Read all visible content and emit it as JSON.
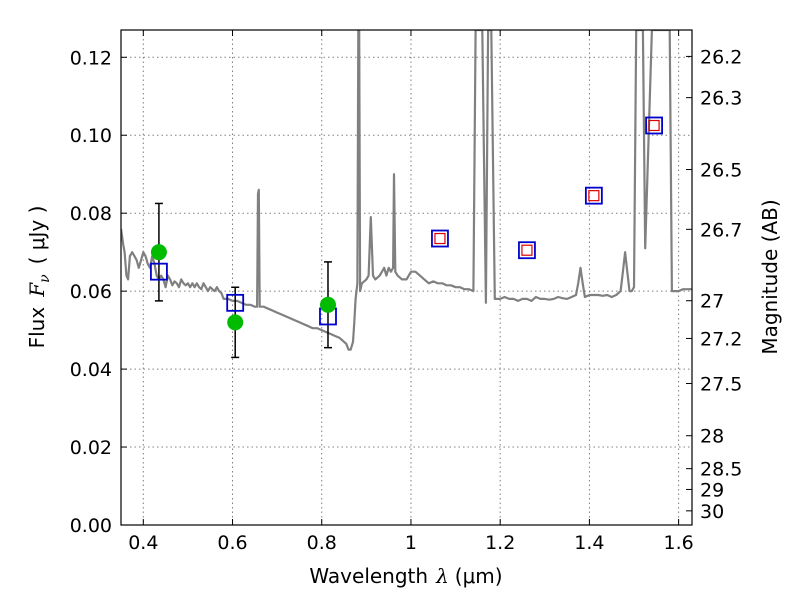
{
  "chart_data": {
    "type": "scatter",
    "xlabel_text": "Wavelength",
    "xlabel_symbol": "λ",
    "xlabel_unit": "(μm)",
    "ylabel_text": "Flux",
    "ylabel_symbol": "F",
    "ylabel_subscript": "ν",
    "ylabel_unit": "( μJy )",
    "y2label": "Magnitude (AB)",
    "xlim": [
      0.35,
      1.63
    ],
    "ylim": [
      0.0,
      0.127
    ],
    "grid": true,
    "x_ticks": [
      {
        "value": 0.4,
        "label": "0.4"
      },
      {
        "value": 0.6,
        "label": "0.6"
      },
      {
        "value": 0.8,
        "label": "0.8"
      },
      {
        "value": 1.0,
        "label": "1"
      },
      {
        "value": 1.2,
        "label": "1.2"
      },
      {
        "value": 1.4,
        "label": "1.4"
      },
      {
        "value": 1.6,
        "label": "1.6"
      }
    ],
    "y_ticks": [
      {
        "value": 0.0,
        "label": "0.00"
      },
      {
        "value": 0.02,
        "label": "0.02"
      },
      {
        "value": 0.04,
        "label": "0.04"
      },
      {
        "value": 0.06,
        "label": "0.06"
      },
      {
        "value": 0.08,
        "label": "0.08"
      },
      {
        "value": 0.1,
        "label": "0.10"
      },
      {
        "value": 0.12,
        "label": "0.12"
      }
    ],
    "y2_ticks": [
      {
        "value": 26.2,
        "label": "26.2"
      },
      {
        "value": 26.3,
        "label": "26.3"
      },
      {
        "value": 26.5,
        "label": "26.5"
      },
      {
        "value": 26.7,
        "label": "26.7"
      },
      {
        "value": 27.0,
        "label": "27"
      },
      {
        "value": 27.2,
        "label": "27.2"
      },
      {
        "value": 27.5,
        "label": "27.5"
      },
      {
        "value": 28.0,
        "label": "28"
      },
      {
        "value": 28.5,
        "label": "28.5"
      },
      {
        "value": 29.0,
        "label": "29"
      },
      {
        "value": 30.0,
        "label": "30"
      }
    ],
    "colors": {
      "spectrum": "#808080",
      "observed": "#00bb00",
      "model_box": "#0000cc",
      "model_inner": "#dd0000",
      "errorbar": "#000000",
      "grid": "#808080"
    },
    "spectrum": [
      [
        0.35,
        0.076
      ],
      [
        0.355,
        0.072
      ],
      [
        0.358,
        0.07
      ],
      [
        0.362,
        0.064
      ],
      [
        0.366,
        0.063
      ],
      [
        0.37,
        0.069
      ],
      [
        0.375,
        0.07
      ],
      [
        0.38,
        0.069
      ],
      [
        0.385,
        0.068
      ],
      [
        0.39,
        0.066
      ],
      [
        0.395,
        0.068
      ],
      [
        0.4,
        0.07
      ],
      [
        0.405,
        0.069
      ],
      [
        0.41,
        0.067
      ],
      [
        0.415,
        0.066
      ],
      [
        0.42,
        0.069
      ],
      [
        0.425,
        0.067
      ],
      [
        0.43,
        0.064
      ],
      [
        0.435,
        0.063
      ],
      [
        0.44,
        0.064
      ],
      [
        0.445,
        0.063
      ],
      [
        0.45,
        0.061
      ],
      [
        0.455,
        0.064
      ],
      [
        0.46,
        0.063
      ],
      [
        0.465,
        0.0615
      ],
      [
        0.47,
        0.0625
      ],
      [
        0.475,
        0.062
      ],
      [
        0.48,
        0.061
      ],
      [
        0.485,
        0.063
      ],
      [
        0.49,
        0.062
      ],
      [
        0.495,
        0.0615
      ],
      [
        0.5,
        0.062
      ],
      [
        0.505,
        0.061
      ],
      [
        0.51,
        0.062
      ],
      [
        0.515,
        0.061
      ],
      [
        0.52,
        0.062
      ],
      [
        0.525,
        0.061
      ],
      [
        0.53,
        0.0605
      ],
      [
        0.535,
        0.062
      ],
      [
        0.54,
        0.061
      ],
      [
        0.545,
        0.06
      ],
      [
        0.55,
        0.061
      ],
      [
        0.555,
        0.0605
      ],
      [
        0.56,
        0.06
      ],
      [
        0.565,
        0.061
      ],
      [
        0.57,
        0.06
      ],
      [
        0.575,
        0.0595
      ],
      [
        0.58,
        0.058
      ],
      [
        0.59,
        0.058
      ],
      [
        0.6,
        0.0575
      ],
      [
        0.61,
        0.0575
      ],
      [
        0.62,
        0.057
      ],
      [
        0.63,
        0.0565
      ],
      [
        0.64,
        0.0565
      ],
      [
        0.65,
        0.056
      ],
      [
        0.655,
        0.056
      ],
      [
        0.657,
        0.085
      ],
      [
        0.659,
        0.086
      ],
      [
        0.661,
        0.056
      ],
      [
        0.67,
        0.056
      ],
      [
        0.68,
        0.0555
      ],
      [
        0.69,
        0.055
      ],
      [
        0.7,
        0.0545
      ],
      [
        0.71,
        0.054
      ],
      [
        0.72,
        0.0535
      ],
      [
        0.73,
        0.053
      ],
      [
        0.74,
        0.0525
      ],
      [
        0.75,
        0.052
      ],
      [
        0.76,
        0.0515
      ],
      [
        0.77,
        0.051
      ],
      [
        0.78,
        0.0505
      ],
      [
        0.79,
        0.0505
      ],
      [
        0.8,
        0.05
      ],
      [
        0.81,
        0.0495
      ],
      [
        0.82,
        0.049
      ],
      [
        0.83,
        0.0485
      ],
      [
        0.84,
        0.048
      ],
      [
        0.85,
        0.047
      ],
      [
        0.855,
        0.0465
      ],
      [
        0.86,
        0.045
      ],
      [
        0.865,
        0.045
      ],
      [
        0.87,
        0.047
      ],
      [
        0.873,
        0.052
      ],
      [
        0.876,
        0.058
      ],
      [
        0.88,
        0.062
      ],
      [
        0.882,
        0.127
      ],
      [
        0.884,
        0.127
      ],
      [
        0.886,
        0.06
      ],
      [
        0.89,
        0.062
      ],
      [
        0.9,
        0.063
      ],
      [
        0.905,
        0.064
      ],
      [
        0.91,
        0.079
      ],
      [
        0.915,
        0.064
      ],
      [
        0.92,
        0.063
      ],
      [
        0.93,
        0.064
      ],
      [
        0.94,
        0.066
      ],
      [
        0.945,
        0.064
      ],
      [
        0.95,
        0.066
      ],
      [
        0.955,
        0.065
      ],
      [
        0.96,
        0.066
      ],
      [
        0.962,
        0.09
      ],
      [
        0.965,
        0.065
      ],
      [
        0.97,
        0.064
      ],
      [
        0.98,
        0.063
      ],
      [
        0.99,
        0.063
      ],
      [
        1.0,
        0.065
      ],
      [
        1.01,
        0.065
      ],
      [
        1.02,
        0.064
      ],
      [
        1.03,
        0.063
      ],
      [
        1.04,
        0.062
      ],
      [
        1.05,
        0.0625
      ],
      [
        1.06,
        0.062
      ],
      [
        1.07,
        0.062
      ],
      [
        1.08,
        0.0615
      ],
      [
        1.09,
        0.0615
      ],
      [
        1.1,
        0.061
      ],
      [
        1.11,
        0.061
      ],
      [
        1.12,
        0.0605
      ],
      [
        1.13,
        0.0605
      ],
      [
        1.14,
        0.06
      ],
      [
        1.145,
        0.127
      ],
      [
        1.16,
        0.127
      ],
      [
        1.168,
        0.057
      ],
      [
        1.173,
        0.127
      ],
      [
        1.18,
        0.127
      ],
      [
        1.188,
        0.058
      ],
      [
        1.2,
        0.058
      ],
      [
        1.21,
        0.0585
      ],
      [
        1.22,
        0.058
      ],
      [
        1.23,
        0.058
      ],
      [
        1.24,
        0.0575
      ],
      [
        1.25,
        0.058
      ],
      [
        1.26,
        0.058
      ],
      [
        1.27,
        0.0575
      ],
      [
        1.28,
        0.0585
      ],
      [
        1.29,
        0.058
      ],
      [
        1.3,
        0.058
      ],
      [
        1.31,
        0.0578
      ],
      [
        1.32,
        0.058
      ],
      [
        1.33,
        0.0585
      ],
      [
        1.34,
        0.0582
      ],
      [
        1.35,
        0.058
      ],
      [
        1.36,
        0.0585
      ],
      [
        1.37,
        0.059
      ],
      [
        1.375,
        0.062
      ],
      [
        1.38,
        0.066
      ],
      [
        1.385,
        0.062
      ],
      [
        1.39,
        0.0585
      ],
      [
        1.4,
        0.059
      ],
      [
        1.41,
        0.059
      ],
      [
        1.42,
        0.059
      ],
      [
        1.43,
        0.0588
      ],
      [
        1.44,
        0.059
      ],
      [
        1.45,
        0.0585
      ],
      [
        1.46,
        0.059
      ],
      [
        1.47,
        0.06
      ],
      [
        1.475,
        0.065
      ],
      [
        1.48,
        0.07
      ],
      [
        1.485,
        0.065
      ],
      [
        1.49,
        0.06
      ],
      [
        1.495,
        0.06
      ],
      [
        1.5,
        0.061
      ],
      [
        1.505,
        0.127
      ],
      [
        1.52,
        0.127
      ],
      [
        1.525,
        0.071
      ],
      [
        1.54,
        0.127
      ],
      [
        1.58,
        0.127
      ],
      [
        1.585,
        0.06
      ],
      [
        1.6,
        0.06
      ],
      [
        1.61,
        0.0605
      ],
      [
        1.62,
        0.0605
      ],
      [
        1.63,
        0.0605
      ]
    ],
    "observed": [
      {
        "x": 0.435,
        "y": 0.07,
        "yerr_low": 0.0575,
        "yerr_high": 0.0825
      },
      {
        "x": 0.606,
        "y": 0.052,
        "yerr_low": 0.043,
        "yerr_high": 0.061
      },
      {
        "x": 0.814,
        "y": 0.0565,
        "yerr_low": 0.0455,
        "yerr_high": 0.0675
      }
    ],
    "model_blue": [
      {
        "x": 0.435,
        "y": 0.065
      },
      {
        "x": 0.606,
        "y": 0.057
      },
      {
        "x": 0.814,
        "y": 0.0535
      },
      {
        "x": 1.065,
        "y": 0.0735
      },
      {
        "x": 1.26,
        "y": 0.0705
      },
      {
        "x": 1.41,
        "y": 0.0845
      },
      {
        "x": 1.545,
        "y": 0.1025
      }
    ],
    "model_red": [
      {
        "x": 1.065,
        "y": 0.0735
      },
      {
        "x": 1.26,
        "y": 0.0705
      },
      {
        "x": 1.41,
        "y": 0.0845
      },
      {
        "x": 1.545,
        "y": 0.1025
      }
    ]
  }
}
